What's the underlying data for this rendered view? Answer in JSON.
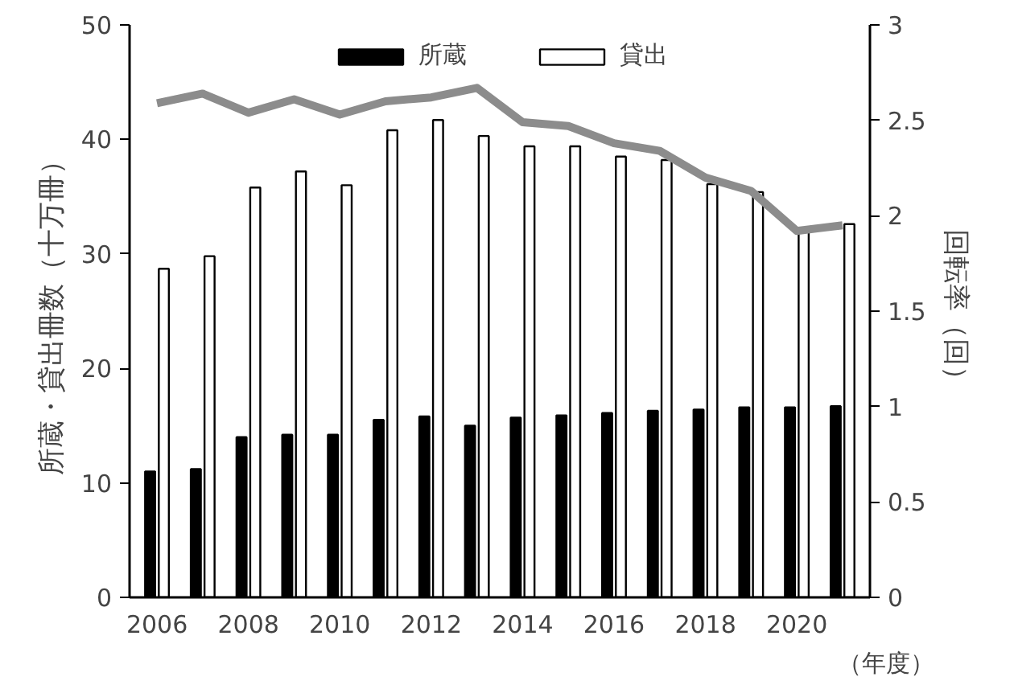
{
  "chart_data": {
    "type": "bar",
    "xlabel": "（年度）",
    "ylabel": "所蔵・貸出冊数（十万冊）",
    "y2label": "回転率（回）",
    "categories": [
      "2006",
      null,
      "2008",
      null,
      "2010",
      null,
      "2012",
      null,
      "2014",
      null,
      "2016",
      null,
      "2018",
      null,
      "2020",
      null
    ],
    "series": [
      {
        "name": "所蔵",
        "color": "#000000",
        "values": [
          11,
          11.2,
          14,
          14.2,
          14.2,
          15.5,
          15.8,
          15,
          15.7,
          15.9,
          16.1,
          16.3,
          16.4,
          16.6,
          16.6,
          16.7
        ]
      },
      {
        "name": "貸出",
        "color": "#ffffff",
        "values": [
          28.7,
          29.8,
          35.8,
          37.2,
          36,
          40.8,
          41.7,
          40.3,
          39.4,
          39.4,
          38.5,
          38.2,
          36.1,
          35.4,
          32,
          32.6
        ]
      },
      {
        "type": "line",
        "axis": "y2",
        "color": "#8c8c8c",
        "values": [
          2.59,
          2.64,
          2.54,
          2.61,
          2.53,
          2.6,
          2.62,
          2.67,
          2.49,
          2.47,
          2.38,
          2.34,
          2.2,
          2.13,
          1.92,
          1.95
        ]
      }
    ],
    "ylim": [
      0,
      50
    ],
    "yticks": [
      0,
      10,
      20,
      30,
      40,
      50
    ],
    "y2lim": [
      0,
      3
    ],
    "y2ticks": [
      0,
      0.5,
      1,
      1.5,
      2,
      2.5,
      3
    ],
    "grid": false,
    "legend": "top"
  }
}
